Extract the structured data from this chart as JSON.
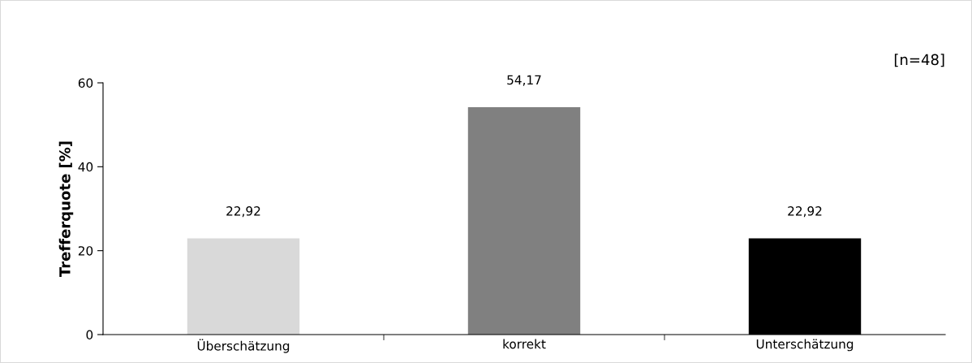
{
  "chart_data": {
    "type": "bar",
    "categories": [
      "Überschätzung",
      "korrekt",
      "Unterschätzung"
    ],
    "values": [
      22.92,
      54.17,
      22.92
    ],
    "colors": [
      "#d9d9d9",
      "#808080",
      "#000000"
    ],
    "value_labels": [
      "22,92",
      "54,17",
      "22,92"
    ],
    "ylabel": "Trefferquote [%]",
    "ylim": [
      0,
      60
    ],
    "yticks": [
      0,
      20,
      40,
      60
    ],
    "annotations": [
      "[n=48]"
    ],
    "grid": false,
    "legend": false
  }
}
